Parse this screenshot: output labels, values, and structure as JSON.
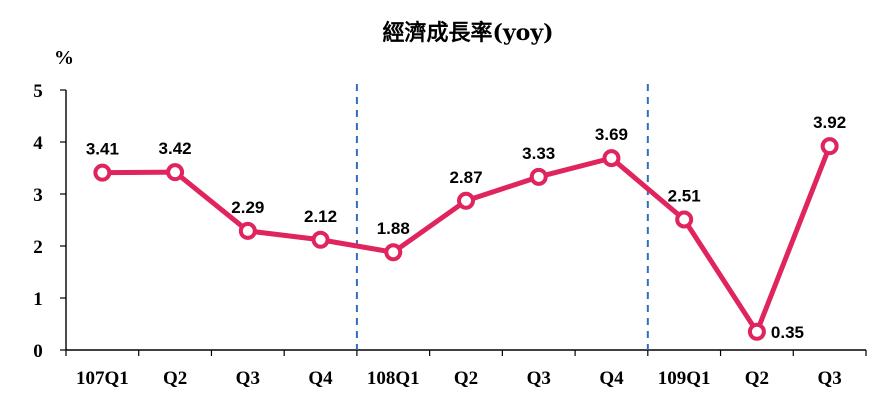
{
  "chart_data": {
    "type": "line",
    "title": "經濟成長率(yoy)",
    "ylabel": "%",
    "xlabel": "",
    "categories": [
      "107Q1",
      "Q2",
      "Q3",
      "Q4",
      "108Q1",
      "Q2",
      "Q3",
      "Q4",
      "109Q1",
      "Q2",
      "Q3"
    ],
    "y_ticks": [
      0,
      1,
      2,
      3,
      4,
      5
    ],
    "ylim": [
      0,
      5
    ],
    "grid": false,
    "legend": "none",
    "series": [
      {
        "values": [
          3.41,
          3.42,
          2.29,
          2.12,
          1.88,
          2.87,
          3.33,
          3.69,
          2.51,
          0.35,
          3.92
        ],
        "labels": [
          "3.41",
          "3.42",
          "2.29",
          "2.12",
          "1.88",
          "2.87",
          "3.33",
          "3.69",
          "2.51",
          "0.35",
          "3.92"
        ],
        "color": "#e0245e"
      }
    ],
    "year_dividers_before": [
      "108Q1",
      "109Q1"
    ],
    "divider_color": "#2f6fb5"
  }
}
